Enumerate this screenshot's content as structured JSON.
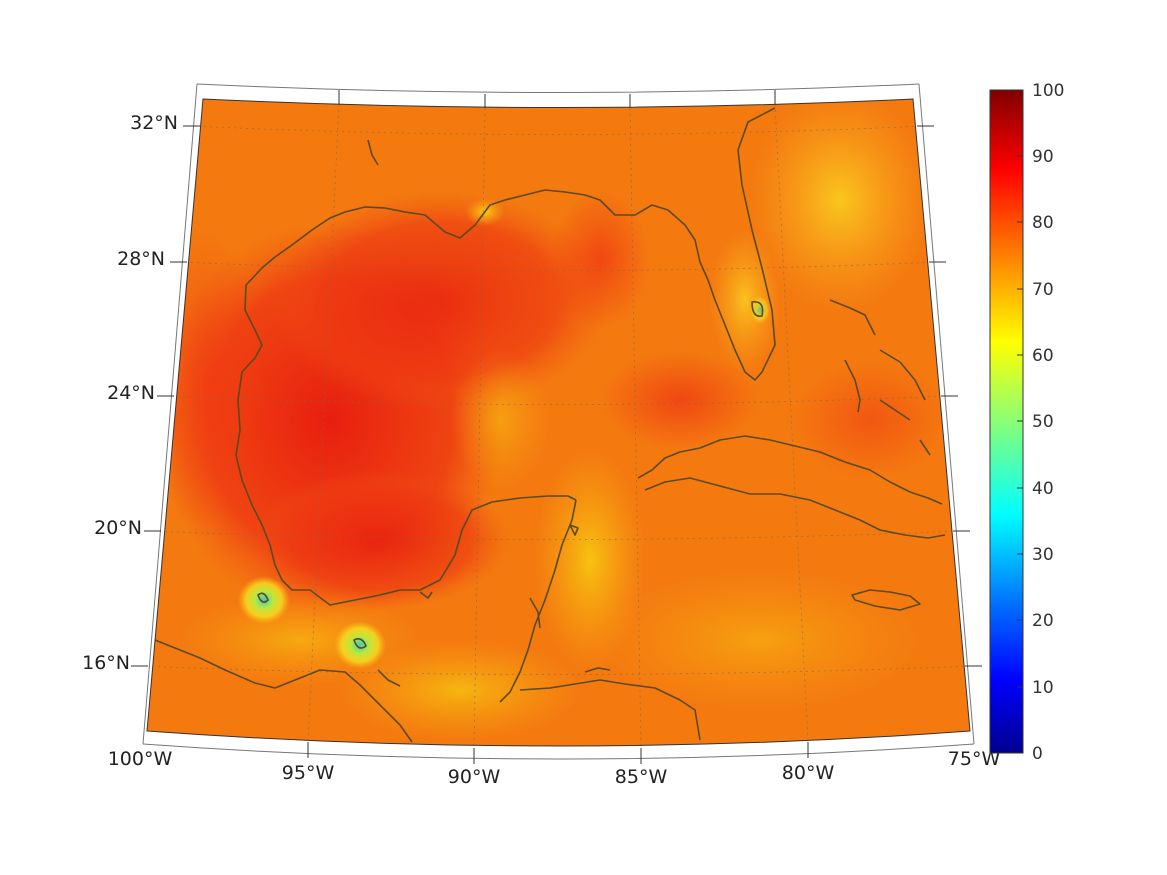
{
  "map": {
    "projection": "conic",
    "field_colormap": "jet",
    "background_color": "#f47a10",
    "coastline_color": "#5a4a1e",
    "lat_labels": [
      "32°N",
      "28°N",
      "24°N",
      "20°N",
      "16°N"
    ],
    "lon_labels": [
      "100°W",
      "95°W",
      "90°W",
      "85°W",
      "80°W",
      "75°W"
    ],
    "lat_values": [
      32,
      28,
      24,
      20,
      16
    ],
    "lon_values": [
      -100,
      -95,
      -90,
      -85,
      -80,
      -75
    ],
    "grid": "dotted"
  },
  "colorbar": {
    "ticks": [
      "100",
      "90",
      "80",
      "70",
      "60",
      "50",
      "40",
      "30",
      "20",
      "10",
      "0"
    ],
    "min": 0,
    "max": 100,
    "colors": [
      "#00008f",
      "#0000ff",
      "#0080ff",
      "#00ffff",
      "#80ff80",
      "#ffff00",
      "#ff8000",
      "#ff0000",
      "#800000"
    ]
  }
}
